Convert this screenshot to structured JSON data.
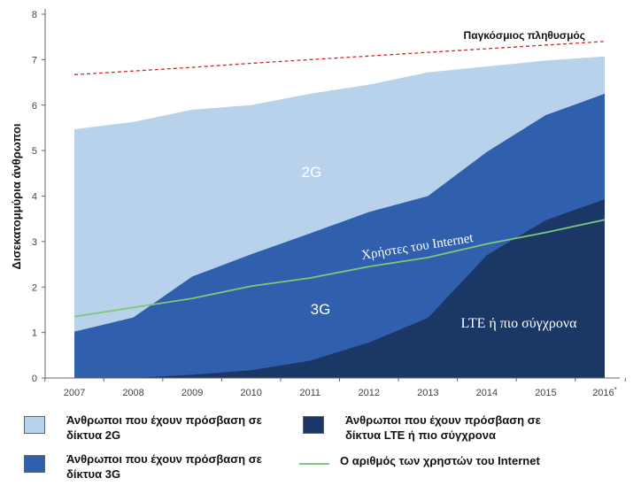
{
  "chart_data": {
    "type": "area",
    "ylabel": "Δισεκατομμύρια άνθρωποι",
    "xlabel": "",
    "ylim": [
      0,
      8
    ],
    "yticks": [
      0,
      1,
      2,
      3,
      4,
      5,
      6,
      7,
      8
    ],
    "categories": [
      "2007",
      "2008",
      "2009",
      "2010",
      "2011",
      "2012",
      "2013",
      "2014",
      "2015",
      "2016*"
    ],
    "grid": false,
    "series": [
      {
        "name": "2G",
        "label": "2G",
        "total": [
          5.47,
          5.63,
          5.9,
          6.0,
          6.25,
          6.45,
          6.72,
          6.85,
          6.98,
          7.07
        ],
        "color": "#b8d2ec"
      },
      {
        "name": "3G",
        "label": "3G",
        "total": [
          1.02,
          1.33,
          2.23,
          2.72,
          3.18,
          3.65,
          4.0,
          4.97,
          5.78,
          6.25
        ],
        "color": "#2f5fad"
      },
      {
        "name": "LTE",
        "label": "LTE ή πιο σύγχρονα",
        "total": [
          0.0,
          0.0,
          0.07,
          0.17,
          0.38,
          0.78,
          1.32,
          2.7,
          3.47,
          3.93
        ],
        "color": "#1b3766"
      }
    ],
    "internet_users": {
      "label": "Χρήστες του Internet",
      "values": [
        1.35,
        1.55,
        1.75,
        2.02,
        2.2,
        2.45,
        2.65,
        2.95,
        3.2,
        3.48
      ],
      "color": "#7ec87a"
    },
    "world_population": {
      "label": "Παγκόσμιος πληθυσμός",
      "values": [
        6.67,
        6.75,
        6.83,
        6.92,
        7.0,
        7.08,
        7.16,
        7.24,
        7.32,
        7.4
      ],
      "color": "#d02828"
    }
  },
  "legend": {
    "items": [
      {
        "text": "Άνθρωποι που έχουν πρόσβαση σε δίκτυα 2G",
        "color": "#b8d2ec"
      },
      {
        "text": "Άνθρωποι που έχουν πρόσβαση σε δίκτυα 3G",
        "color": "#2f5fad"
      },
      {
        "text": "Άνθρωποι που έχουν πρόσβαση σε δίκτυα LTE ή πιο σύγχρονα",
        "color": "#1b3766"
      },
      {
        "text": "Ο αριθμός των χρηστών του Internet",
        "color": "#7ec87a"
      }
    ]
  }
}
